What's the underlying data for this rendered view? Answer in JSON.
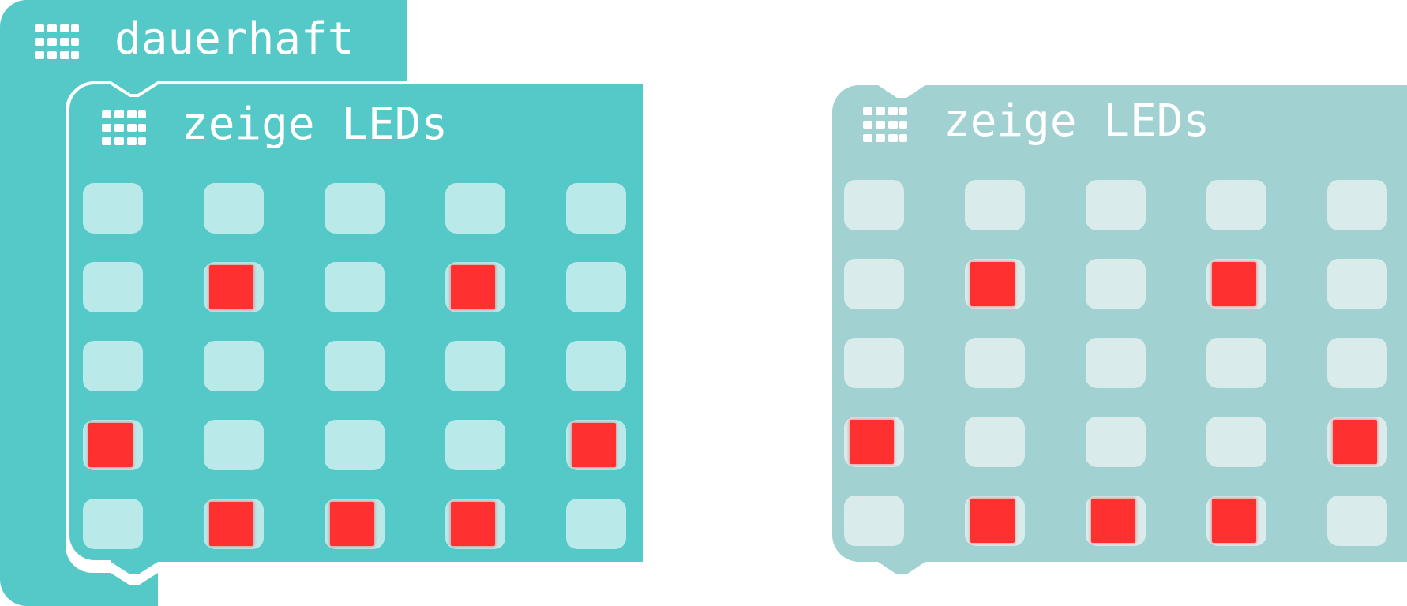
{
  "colors": {
    "loop_block": "#55c8c8",
    "show_leds_active": "#55c8c8",
    "show_leds_disabled": "#a1d1d1",
    "led_off_active": "#b9e9e9",
    "led_off_disabled": "#d9ebeb",
    "led_on": "#ff3030",
    "label_text": "#ffffff"
  },
  "forever_block": {
    "icon": "led-grid-icon",
    "label": "dauerhaft"
  },
  "show_leds_block": {
    "icon": "led-grid-icon",
    "label": "zeige LEDs",
    "grid": [
      [
        0,
        0,
        0,
        0,
        0
      ],
      [
        0,
        1,
        0,
        1,
        0
      ],
      [
        0,
        0,
        0,
        0,
        0
      ],
      [
        1,
        0,
        0,
        0,
        1
      ],
      [
        0,
        1,
        1,
        1,
        0
      ]
    ]
  },
  "show_leds_block_disabled": {
    "icon": "led-grid-icon",
    "label": "zeige LEDs",
    "grid": [
      [
        0,
        0,
        0,
        0,
        0
      ],
      [
        0,
        1,
        0,
        1,
        0
      ],
      [
        0,
        0,
        0,
        0,
        0
      ],
      [
        1,
        0,
        0,
        0,
        1
      ],
      [
        0,
        1,
        1,
        1,
        0
      ]
    ]
  }
}
